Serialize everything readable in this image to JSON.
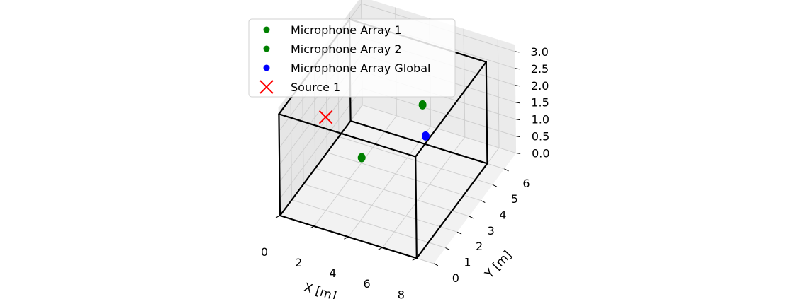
{
  "chart_data": {
    "type": "scatter",
    "projection": "3d",
    "xlabel": "X [m]",
    "ylabel": "Y [m]",
    "zlabel": "",
    "x_ticks": [
      0,
      2,
      4,
      6,
      8
    ],
    "y_ticks": [
      0,
      1,
      2,
      3,
      4,
      5,
      6
    ],
    "z_ticks": [
      "0.0",
      "0.5",
      "1.0",
      "1.5",
      "2.0",
      "2.5",
      "3.0"
    ],
    "xlim": [
      0,
      9
    ],
    "ylim": [
      0,
      7
    ],
    "zlim": [
      0,
      3.2
    ],
    "grid": true,
    "legend_placement": "upper-left",
    "room_box": {
      "x": [
        0,
        8
      ],
      "y": [
        0,
        6
      ],
      "z": [
        0,
        3
      ]
    },
    "series": [
      {
        "name": "Microphone Array 1",
        "marker": "circle",
        "color": "#008000",
        "points": [
          {
            "x": 2.8,
            "y": 2.9,
            "z": 0.8
          }
        ]
      },
      {
        "name": "Microphone Array 2",
        "marker": "circle",
        "color": "#008000",
        "points": [
          {
            "x": 4.8,
            "y": 5.2,
            "z": 1.6
          }
        ]
      },
      {
        "name": "Microphone Array Global",
        "marker": "circle",
        "color": "#0000ff",
        "points": [
          {
            "x": 5.8,
            "y": 4.0,
            "z": 1.4
          }
        ]
      },
      {
        "name": "Source 1",
        "marker": "x",
        "color": "#ff0000",
        "points": [
          {
            "x": 1.0,
            "y": 2.5,
            "z": 1.9
          }
        ]
      }
    ]
  }
}
